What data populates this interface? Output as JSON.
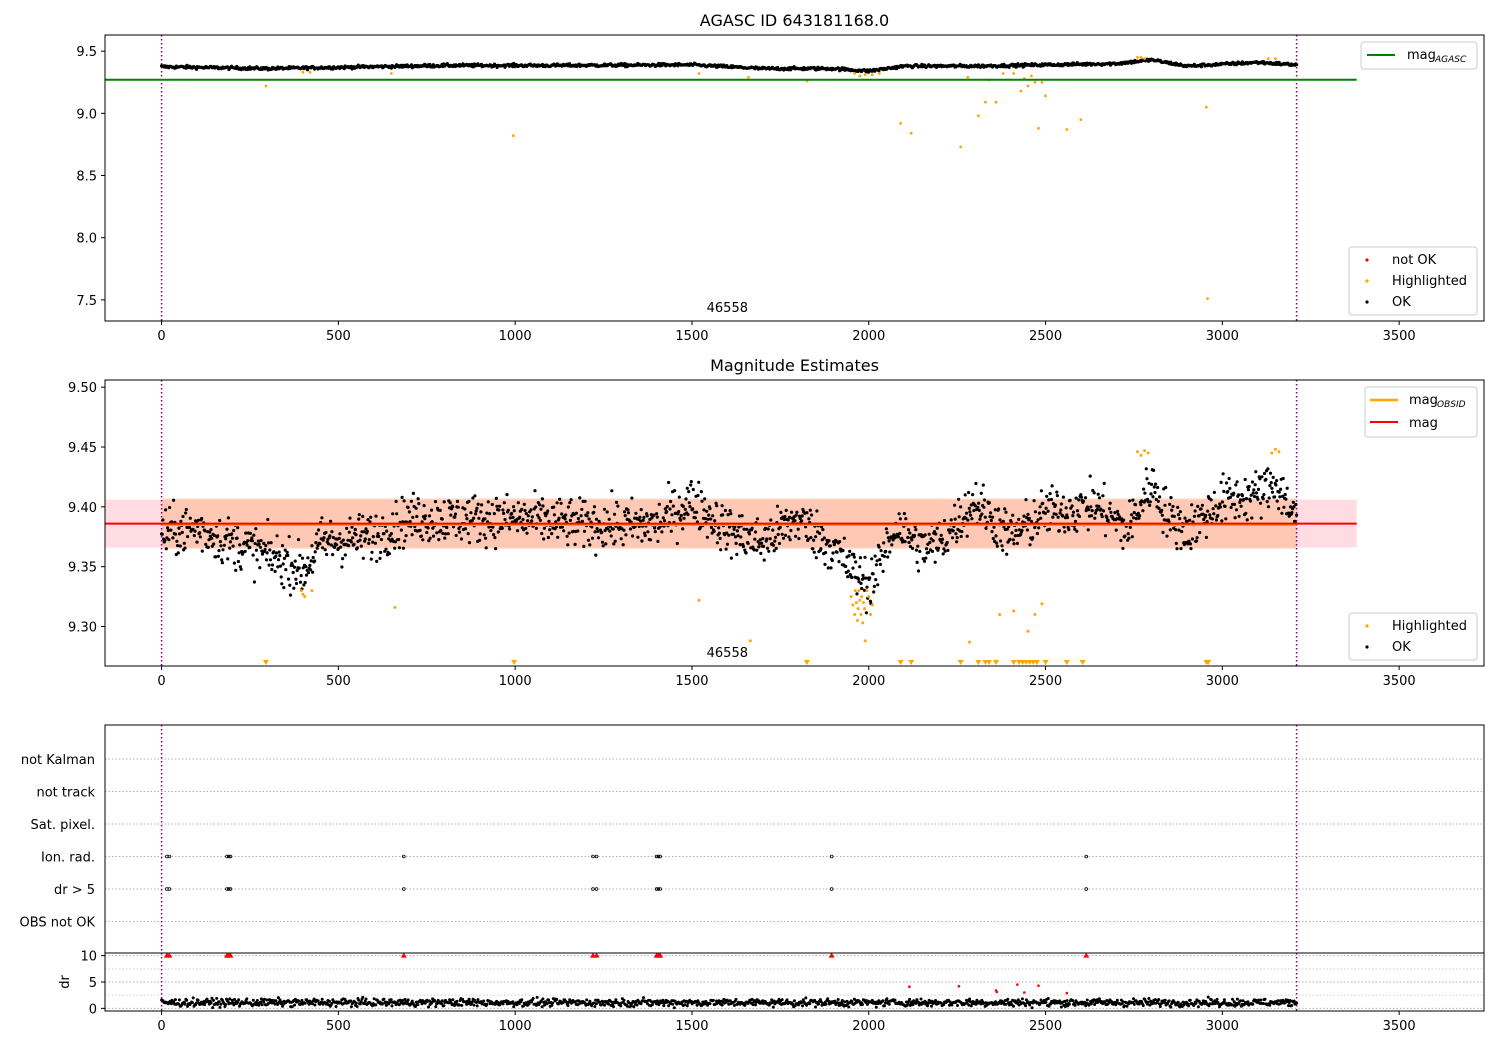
{
  "chart_data": [
    {
      "type": "scatter",
      "title": "AGASC ID 643181168.0",
      "xlim": [
        -160,
        3740
      ],
      "ylim": [
        7.33,
        9.63
      ],
      "xticks": [
        0,
        500,
        1000,
        1500,
        2000,
        2500,
        3000,
        3500
      ],
      "yticks": [
        7.5,
        8.0,
        8.5,
        9.0,
        9.5
      ],
      "grid": false,
      "legend_position": "top-right",
      "legend_position_2": "bottom-right",
      "annotation": "46558",
      "vlines": [
        0,
        3210
      ],
      "hline": {
        "name": "mag_AGASC",
        "y": 9.27,
        "xmin": -160,
        "xmax": 3380
      },
      "legend": [
        {
          "label_main": "mag",
          "label_sub": "AGASC",
          "kind": "line",
          "color": "#008000"
        }
      ],
      "legend2": [
        {
          "label": "not OK",
          "kind": "point",
          "color": "#ff0000"
        },
        {
          "label": "Highlighted",
          "kind": "point",
          "color": "#ffa500"
        },
        {
          "label": "OK",
          "kind": "point",
          "color": "#000000"
        }
      ],
      "series": [
        {
          "name": "OK",
          "color": "#000000",
          "style": "dense",
          "n": 1300,
          "x_range": [
            0,
            3210
          ],
          "baseline": [
            [
              0,
              9.375
            ],
            [
              300,
              9.36
            ],
            [
              600,
              9.375
            ],
            [
              800,
              9.385
            ],
            [
              1100,
              9.385
            ],
            [
              1500,
              9.39
            ],
            [
              1700,
              9.36
            ],
            [
              1900,
              9.36
            ],
            [
              2000,
              9.34
            ],
            [
              2100,
              9.38
            ],
            [
              2300,
              9.38
            ],
            [
              2500,
              9.39
            ],
            [
              2700,
              9.4
            ],
            [
              2800,
              9.43
            ],
            [
              2900,
              9.38
            ],
            [
              3100,
              9.41
            ],
            [
              3210,
              9.39
            ]
          ],
          "jitter": 0.012
        },
        {
          "name": "Highlighted",
          "color": "#ffa500",
          "x": [
            295,
            400,
            420,
            650,
            995,
            1520,
            1660,
            1825,
            1960,
            1975,
            1990,
            2010,
            2030,
            2090,
            2120,
            2260,
            2280,
            2310,
            2330,
            2340,
            2360,
            2380,
            2410,
            2430,
            2440,
            2450,
            2460,
            2470,
            2480,
            2490,
            2500,
            2560,
            2600,
            2760,
            2770,
            2780,
            2955,
            2958,
            3130,
            3150
          ],
          "y": [
            9.22,
            9.33,
            9.33,
            9.32,
            8.82,
            9.32,
            9.29,
            9.26,
            9.32,
            9.3,
            9.31,
            9.31,
            9.32,
            8.92,
            8.84,
            8.73,
            9.29,
            8.98,
            9.09,
            9.27,
            9.09,
            9.32,
            9.32,
            9.18,
            9.28,
            9.22,
            9.3,
            9.25,
            8.88,
            9.25,
            9.14,
            8.87,
            8.95,
            9.45,
            9.45,
            9.44,
            9.05,
            7.51,
            9.44,
            9.44
          ]
        }
      ]
    },
    {
      "type": "scatter",
      "title": "Magnitude Estimates",
      "xlim": [
        -160,
        3740
      ],
      "ylim": [
        9.267,
        9.506
      ],
      "xticks": [
        0,
        500,
        1000,
        1500,
        2000,
        2500,
        3000,
        3500
      ],
      "yticks": [
        9.3,
        9.35,
        9.4,
        9.45,
        9.5
      ],
      "grid": false,
      "legend_position": "top-right",
      "legend_position_2": "bottom-right",
      "annotation": "46558",
      "vlines": [
        0,
        3210
      ],
      "mag": {
        "name": "mag",
        "y": 9.386,
        "lower": 9.366,
        "upper": 9.406,
        "color": "#ff0000",
        "band_color": "#ffc0cb",
        "xmin": -160,
        "xmax": 3380
      },
      "mag_obsid": {
        "name": "mag_OBSID",
        "y": 9.385,
        "lower": 9.365,
        "upper": 9.407,
        "color": "#ffa500",
        "xmin": 0,
        "xmax": 3210
      },
      "legend": [
        {
          "label_main": "mag",
          "label_sub": "OBSID",
          "kind": "line",
          "color": "#ffa500"
        },
        {
          "label_main": "mag",
          "label_sub": "",
          "kind": "line",
          "color": "#ff0000"
        }
      ],
      "legend2": [
        {
          "label": "Highlighted",
          "kind": "point",
          "color": "#ffa500"
        },
        {
          "label": "OK",
          "kind": "point",
          "color": "#000000"
        }
      ],
      "series": [
        {
          "name": "OK",
          "color": "#000000",
          "style": "dense",
          "n": 1700,
          "x_range": [
            0,
            3210
          ],
          "baseline": [
            [
              0,
              9.378
            ],
            [
              100,
              9.382
            ],
            [
              200,
              9.37
            ],
            [
              300,
              9.36
            ],
            [
              380,
              9.35
            ],
            [
              400,
              9.345
            ],
            [
              450,
              9.37
            ],
            [
              600,
              9.375
            ],
            [
              700,
              9.39
            ],
            [
              800,
              9.39
            ],
            [
              1000,
              9.39
            ],
            [
              1200,
              9.385
            ],
            [
              1400,
              9.385
            ],
            [
              1500,
              9.405
            ],
            [
              1600,
              9.38
            ],
            [
              1700,
              9.37
            ],
            [
              1800,
              9.39
            ],
            [
              1900,
              9.365
            ],
            [
              1960,
              9.345
            ],
            [
              2000,
              9.335
            ],
            [
              2080,
              9.385
            ],
            [
              2150,
              9.365
            ],
            [
              2200,
              9.37
            ],
            [
              2300,
              9.405
            ],
            [
              2400,
              9.375
            ],
            [
              2500,
              9.395
            ],
            [
              2650,
              9.4
            ],
            [
              2730,
              9.38
            ],
            [
              2800,
              9.42
            ],
            [
              2850,
              9.39
            ],
            [
              2900,
              9.38
            ],
            [
              3000,
              9.405
            ],
            [
              3100,
              9.41
            ],
            [
              3150,
              9.42
            ],
            [
              3210,
              9.39
            ]
          ],
          "jitter": 0.02
        },
        {
          "name": "Highlighted",
          "color": "#ffa500",
          "x": [
            395,
            400,
            405,
            425,
            660,
            1520,
            1665,
            1950,
            1955,
            1960,
            1962,
            1965,
            1968,
            1970,
            1972,
            1975,
            1978,
            1980,
            1983,
            1985,
            1988,
            1990,
            1995,
            2000,
            2005,
            2010,
            2285,
            2370,
            2410,
            2450,
            2470,
            2490,
            2760,
            2770,
            2780,
            2790,
            3140,
            3150,
            3160
          ],
          "y": [
            9.33,
            9.327,
            9.325,
            9.33,
            9.316,
            9.322,
            9.288,
            9.325,
            9.318,
            9.31,
            9.33,
            9.32,
            9.305,
            9.315,
            9.33,
            9.322,
            9.31,
            9.325,
            9.303,
            9.32,
            9.315,
            9.288,
            9.33,
            9.325,
            9.31,
            9.318,
            9.287,
            9.31,
            9.313,
            9.296,
            9.31,
            9.319,
            9.446,
            9.443,
            9.447,
            9.445,
            9.445,
            9.448,
            9.446
          ]
        },
        {
          "name": "Highlighted (below range)",
          "color": "#ffa500",
          "marker": "triangle-down",
          "x": [
            295,
            997,
            1825,
            2090,
            2120,
            2260,
            2310,
            2330,
            2340,
            2360,
            2410,
            2425,
            2435,
            2445,
            2455,
            2465,
            2475,
            2500,
            2560,
            2605,
            2955,
            2960
          ],
          "y": [
            9.27,
            9.27,
            9.27,
            9.27,
            9.27,
            9.27,
            9.27,
            9.27,
            9.27,
            9.27,
            9.27,
            9.27,
            9.27,
            9.27,
            9.27,
            9.27,
            9.27,
            9.27,
            9.27,
            9.27,
            9.27,
            9.27
          ]
        }
      ]
    },
    {
      "type": "scatter",
      "title": "",
      "xlim": [
        -160,
        3740
      ],
      "categories": [
        "not Kalman",
        "not track",
        "Sat. pixel.",
        "Ion. rad.",
        "dr > 5",
        "OBS not OK"
      ],
      "grid": true,
      "vlines": [
        0,
        3210
      ],
      "flags": [
        {
          "category": "Ion. rad.",
          "x": [
            15,
            22,
            185,
            190,
            195,
            685,
            1220,
            1230,
            1400,
            1405,
            1410,
            1895,
            2615
          ]
        },
        {
          "category": "dr > 5",
          "x": [
            15,
            22,
            185,
            190,
            195,
            685,
            1220,
            1230,
            1400,
            1405,
            1410,
            1895,
            2615
          ]
        }
      ]
    },
    {
      "type": "scatter",
      "title": "",
      "xlabel": "",
      "ylabel": "dr",
      "xlim": [
        -160,
        3740
      ],
      "ylim": [
        -0.5,
        10.5
      ],
      "xticks": [
        0,
        500,
        1000,
        1500,
        2000,
        2500,
        3000,
        3500
      ],
      "yticks": [
        0,
        5,
        10
      ],
      "grid": true,
      "vlines": [
        0,
        3210
      ],
      "series": [
        {
          "name": "OK",
          "color": "#000000",
          "style": "dense",
          "n": 1400,
          "x_range": [
            0,
            3210
          ],
          "baseline": [
            [
              0,
              1.1
            ],
            [
              3210,
              1.1
            ]
          ],
          "jitter": 0.7
        },
        {
          "name": "not OK",
          "color": "#ff0000",
          "marker": "triangle-up",
          "x": [
            15,
            22,
            185,
            190,
            195,
            685,
            1220,
            1230,
            1400,
            1405,
            1410,
            1895,
            2615
          ],
          "y": [
            10,
            10,
            10,
            10,
            10,
            10,
            10,
            10,
            10,
            10,
            10,
            10,
            10
          ]
        },
        {
          "name": "not OK (points)",
          "color": "#ff0000",
          "x": [
            2115,
            2255,
            2360,
            2362,
            2420,
            2440,
            2480,
            2560
          ],
          "y": [
            4.1,
            4.2,
            3.4,
            3.1,
            4.5,
            3.0,
            4.3,
            2.9
          ]
        }
      ]
    }
  ]
}
